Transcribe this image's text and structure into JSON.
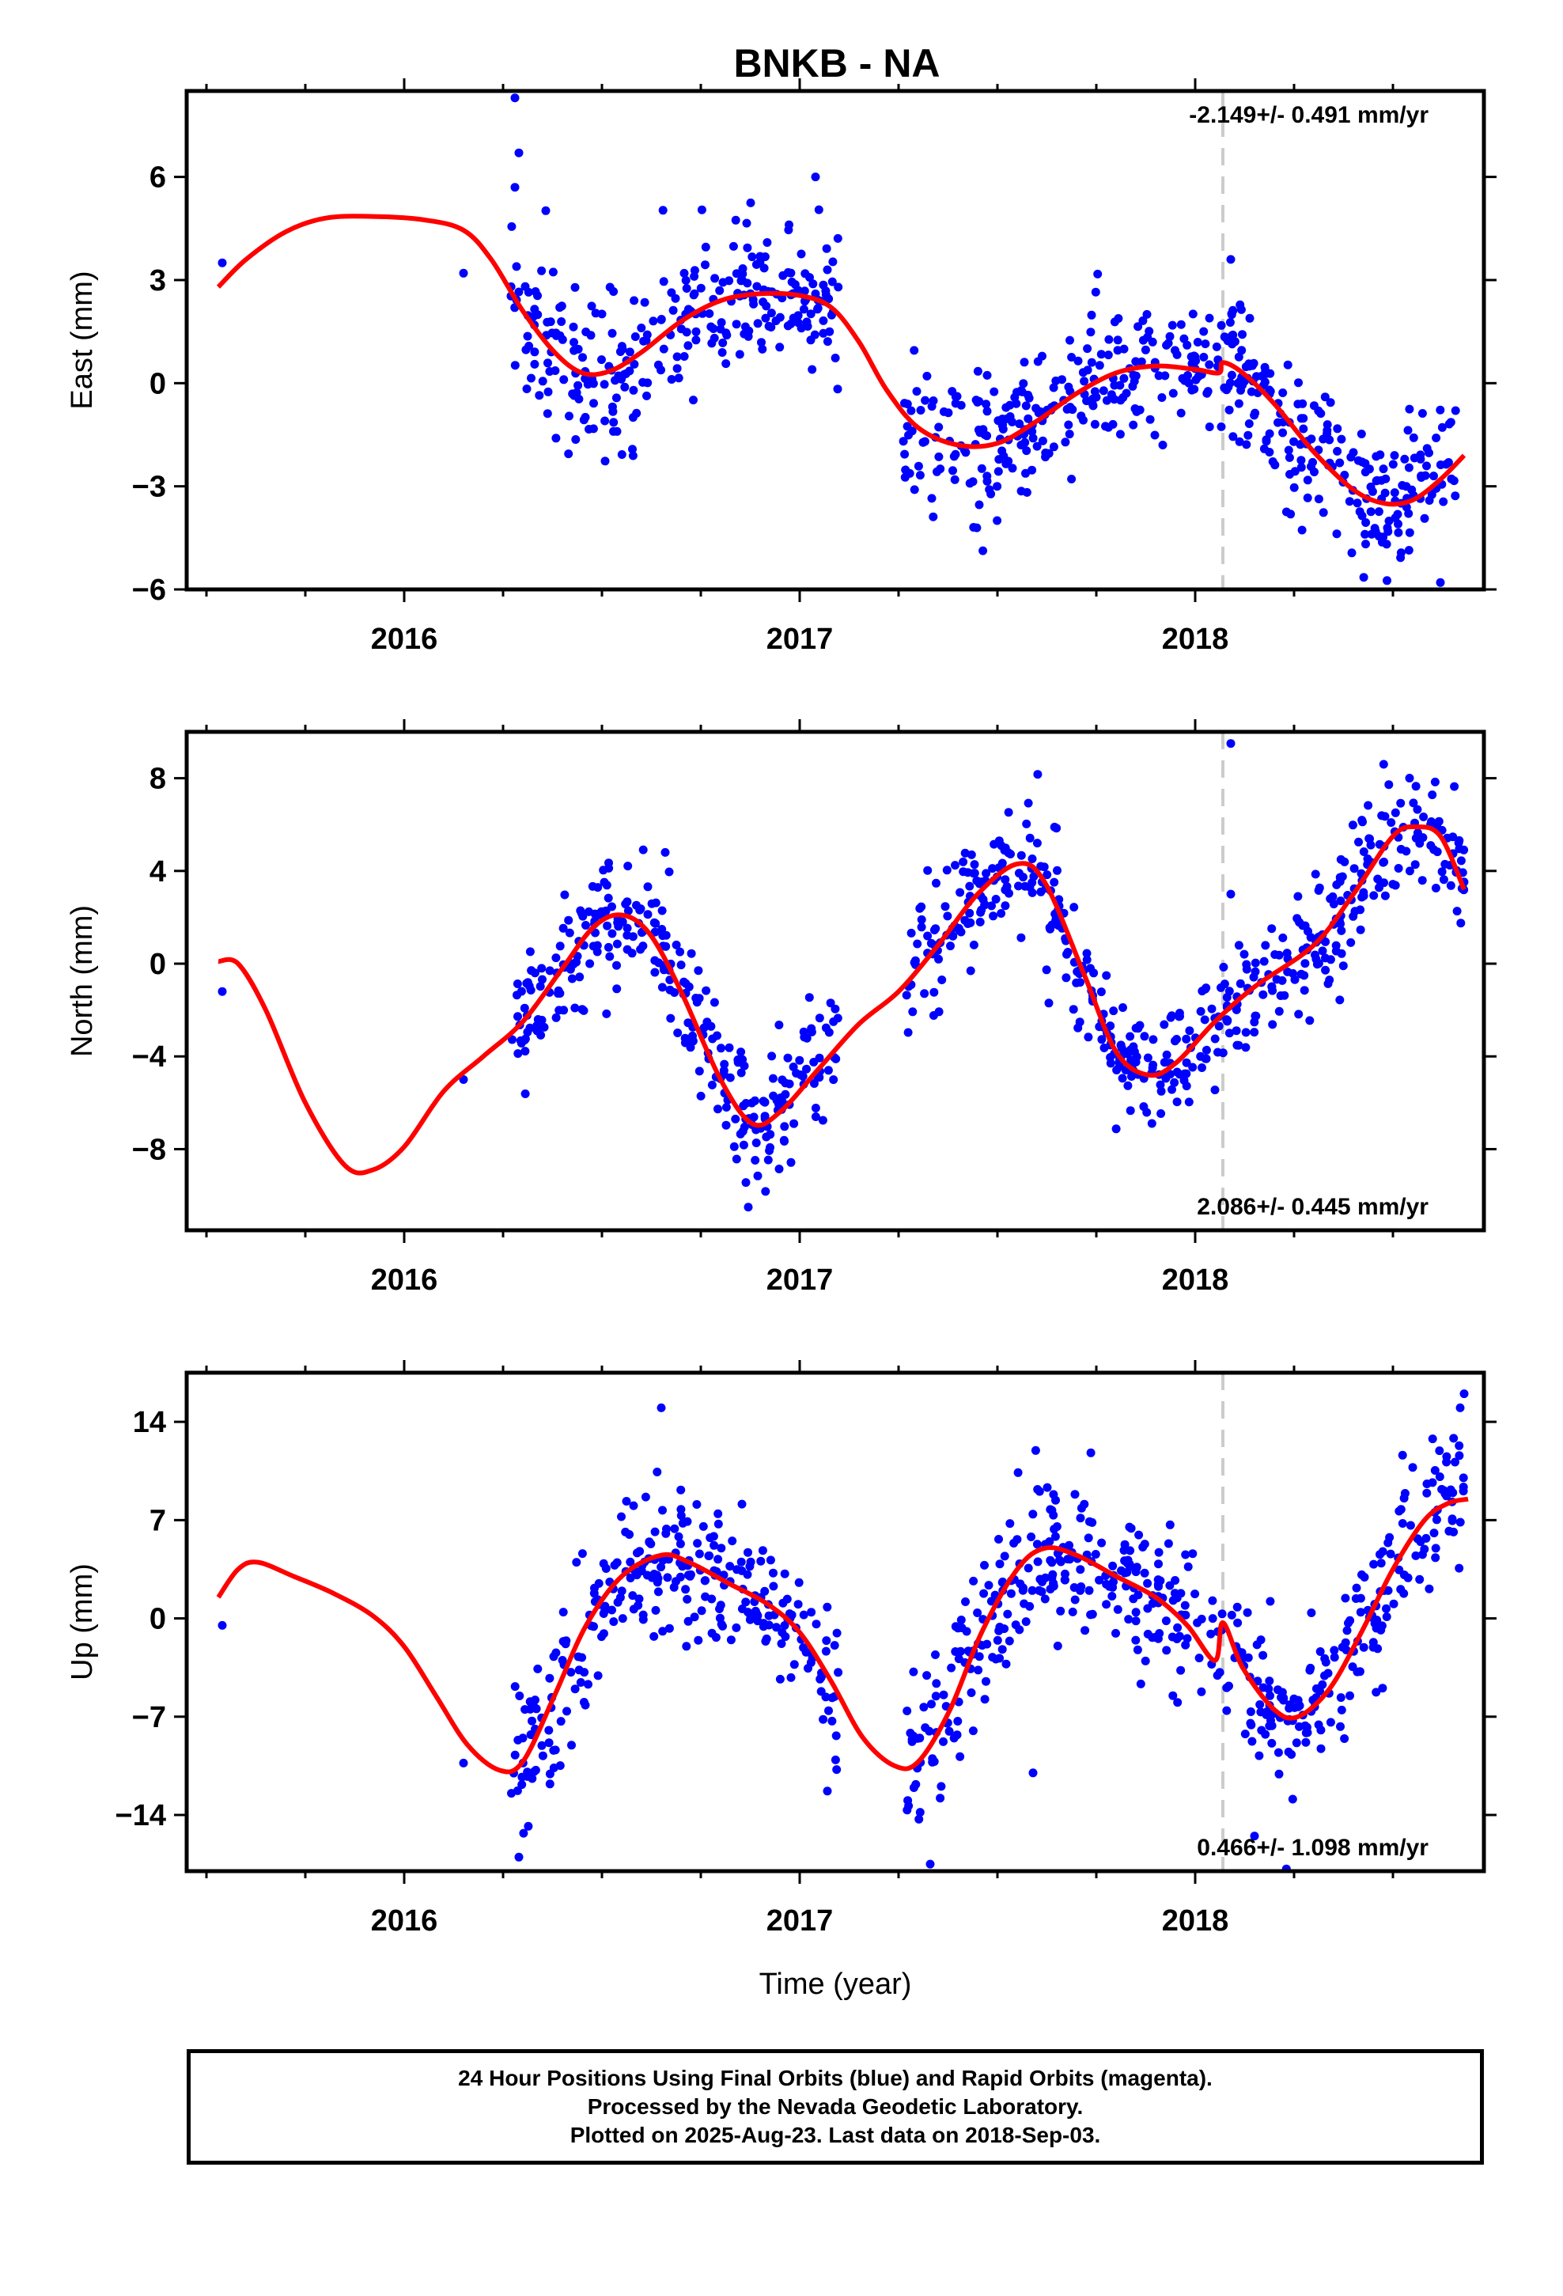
{
  "title": "BNKB - NA",
  "caption": {
    "line1": "24 Hour Positions Using Final Orbits (blue) and Rapid Orbits (magenta).",
    "line2": "Processed by the Nevada Geodetic Laboratory.",
    "line3": "Plotted on 2025-Aug-23. Last data on 2018-Sep-03."
  },
  "colors": {
    "points": "#0000ff",
    "model": "#ff0000",
    "break_line": "#cccccc",
    "axes": "#000000"
  },
  "chart_data": [
    {
      "type": "scatter",
      "ylabel": "East (mm)",
      "xlabel": "",
      "xlim": [
        2015.45,
        2018.73
      ],
      "ylim": [
        -6,
        8.5
      ],
      "xticks": [
        2016,
        2017,
        2018
      ],
      "yticks": [
        -6,
        -3,
        0,
        3,
        6
      ],
      "grid": false,
      "break_x": 2018.07,
      "rate_text": "-2.149+/- 0.491 mm/yr",
      "rate_position": "top-right",
      "model_curve": [
        [
          2015.53,
          2.8
        ],
        [
          2015.6,
          3.6
        ],
        [
          2015.7,
          4.4
        ],
        [
          2015.8,
          4.8
        ],
        [
          2015.92,
          4.85
        ],
        [
          2016.05,
          4.75
        ],
        [
          2016.15,
          4.45
        ],
        [
          2016.22,
          3.6
        ],
        [
          2016.3,
          2.1
        ],
        [
          2016.38,
          0.9
        ],
        [
          2016.45,
          0.3
        ],
        [
          2016.52,
          0.35
        ],
        [
          2016.6,
          0.9
        ],
        [
          2016.7,
          1.8
        ],
        [
          2016.8,
          2.4
        ],
        [
          2016.9,
          2.6
        ],
        [
          2017.0,
          2.55
        ],
        [
          2017.08,
          2.2
        ],
        [
          2017.15,
          1.2
        ],
        [
          2017.22,
          -0.2
        ],
        [
          2017.3,
          -1.3
        ],
        [
          2017.4,
          -1.8
        ],
        [
          2017.5,
          -1.75
        ],
        [
          2017.6,
          -1.1
        ],
        [
          2017.7,
          -0.3
        ],
        [
          2017.8,
          0.3
        ],
        [
          2017.9,
          0.5
        ],
        [
          2018.0,
          0.4
        ],
        [
          2018.06,
          0.3
        ],
        [
          2018.07,
          0.6
        ],
        [
          2018.12,
          0.3
        ],
        [
          2018.2,
          -0.6
        ],
        [
          2018.3,
          -2.0
        ],
        [
          2018.4,
          -3.1
        ],
        [
          2018.48,
          -3.5
        ],
        [
          2018.55,
          -3.4
        ],
        [
          2018.62,
          -2.8
        ],
        [
          2018.68,
          -2.1
        ]
      ],
      "points_summary": {
        "segments": [
          [
            2016.27,
            2016.45,
            1.2,
            1.3
          ],
          [
            2016.45,
            2017.1,
            2.0,
            1.1
          ],
          [
            2017.26,
            2017.62,
            -1.8,
            1.0
          ],
          [
            2017.62,
            2018.2,
            0.2,
            1.0
          ],
          [
            2018.2,
            2018.66,
            -2.6,
            1.1
          ]
        ],
        "outliers": [
          [
            2015.54,
            3.5
          ],
          [
            2016.15,
            3.2
          ],
          [
            2016.28,
            8.3
          ],
          [
            2016.29,
            6.7
          ],
          [
            2016.28,
            5.7
          ],
          [
            2017.04,
            6.0
          ],
          [
            2018.09,
            3.6
          ],
          [
            2018.62,
            -5.8
          ]
        ]
      }
    },
    {
      "type": "scatter",
      "ylabel": "North (mm)",
      "xlabel": "",
      "xlim": [
        2015.45,
        2018.73
      ],
      "ylim": [
        -11.5,
        10
      ],
      "xticks": [
        2016,
        2017,
        2018
      ],
      "yticks": [
        -8,
        -4,
        0,
        4,
        8
      ],
      "grid": false,
      "break_x": 2018.07,
      "rate_text": "2.086+/- 0.445 mm/yr",
      "rate_position": "bottom-right",
      "model_curve": [
        [
          2015.53,
          0.1
        ],
        [
          2015.58,
          0.0
        ],
        [
          2015.65,
          -2.0
        ],
        [
          2015.75,
          -6.0
        ],
        [
          2015.85,
          -8.7
        ],
        [
          2015.92,
          -8.9
        ],
        [
          2016.0,
          -7.9
        ],
        [
          2016.1,
          -5.5
        ],
        [
          2016.2,
          -4.0
        ],
        [
          2016.3,
          -2.5
        ],
        [
          2016.4,
          -0.2
        ],
        [
          2016.48,
          1.6
        ],
        [
          2016.55,
          2.1
        ],
        [
          2016.62,
          1.3
        ],
        [
          2016.7,
          -1.2
        ],
        [
          2016.8,
          -5.0
        ],
        [
          2016.88,
          -6.9
        ],
        [
          2016.95,
          -6.4
        ],
        [
          2017.05,
          -4.5
        ],
        [
          2017.15,
          -2.6
        ],
        [
          2017.25,
          -1.2
        ],
        [
          2017.35,
          0.8
        ],
        [
          2017.45,
          3.0
        ],
        [
          2017.55,
          4.3
        ],
        [
          2017.62,
          3.5
        ],
        [
          2017.72,
          -0.5
        ],
        [
          2017.8,
          -3.8
        ],
        [
          2017.88,
          -4.8
        ],
        [
          2017.95,
          -4.3
        ],
        [
          2018.05,
          -2.5
        ],
        [
          2018.15,
          -1.0
        ],
        [
          2018.3,
          0.8
        ],
        [
          2018.4,
          3.0
        ],
        [
          2018.5,
          5.5
        ],
        [
          2018.56,
          5.9
        ],
        [
          2018.62,
          5.5
        ],
        [
          2018.68,
          3.2
        ]
      ],
      "points_summary": {
        "segments": [
          [
            2016.27,
            2016.7,
            0.0,
            1.3
          ],
          [
            2016.7,
            2017.1,
            -5.5,
            1.3
          ],
          [
            2017.26,
            2017.7,
            2.0,
            1.3
          ],
          [
            2017.7,
            2018.05,
            -3.8,
            1.2
          ],
          [
            2018.05,
            2018.68,
            2.2,
            1.3
          ]
        ],
        "outliers": [
          [
            2015.54,
            -1.2
          ],
          [
            2016.15,
            -5.0
          ],
          [
            2016.66,
            4.8
          ],
          [
            2016.87,
            -10.5
          ],
          [
            2017.63,
            -1.7
          ],
          [
            2018.09,
            9.5
          ],
          [
            2018.09,
            3.0
          ]
        ]
      }
    },
    {
      "type": "scatter",
      "ylabel": "Up (mm)",
      "xlabel": "Time (year)",
      "xlim": [
        2015.45,
        2018.73
      ],
      "ylim": [
        -18,
        17.5
      ],
      "xticks": [
        2016,
        2017,
        2018
      ],
      "yticks": [
        -14,
        -7,
        0,
        7,
        14
      ],
      "grid": false,
      "break_x": 2018.07,
      "rate_text": "0.466+/- 1.098 mm/yr",
      "rate_position": "bottom-right",
      "model_curve": [
        [
          2015.53,
          1.5
        ],
        [
          2015.58,
          3.5
        ],
        [
          2015.63,
          4.0
        ],
        [
          2015.72,
          3.0
        ],
        [
          2015.82,
          1.8
        ],
        [
          2015.92,
          0.2
        ],
        [
          2016.0,
          -2.0
        ],
        [
          2016.08,
          -5.5
        ],
        [
          2016.16,
          -9.0
        ],
        [
          2016.24,
          -10.8
        ],
        [
          2016.3,
          -10.2
        ],
        [
          2016.38,
          -5.5
        ],
        [
          2016.46,
          -0.5
        ],
        [
          2016.55,
          3.0
        ],
        [
          2016.65,
          4.5
        ],
        [
          2016.72,
          4.0
        ],
        [
          2016.82,
          2.5
        ],
        [
          2016.92,
          1.0
        ],
        [
          2017.0,
          -1.0
        ],
        [
          2017.08,
          -4.5
        ],
        [
          2017.16,
          -8.5
        ],
        [
          2017.24,
          -10.5
        ],
        [
          2017.3,
          -10.2
        ],
        [
          2017.38,
          -6.5
        ],
        [
          2017.46,
          -1.0
        ],
        [
          2017.55,
          3.5
        ],
        [
          2017.62,
          5.0
        ],
        [
          2017.7,
          4.5
        ],
        [
          2017.8,
          3.0
        ],
        [
          2017.9,
          1.5
        ],
        [
          2017.98,
          -0.5
        ],
        [
          2018.05,
          -3.0
        ],
        [
          2018.07,
          -0.3
        ],
        [
          2018.12,
          -3.5
        ],
        [
          2018.2,
          -6.5
        ],
        [
          2018.26,
          -7.0
        ],
        [
          2018.34,
          -5.0
        ],
        [
          2018.42,
          -1.0
        ],
        [
          2018.5,
          3.5
        ],
        [
          2018.58,
          7.0
        ],
        [
          2018.64,
          8.2
        ],
        [
          2018.69,
          8.5
        ]
      ],
      "points_summary": {
        "segments": [
          [
            2016.27,
            2016.45,
            -5.0,
            2.8
          ],
          [
            2016.45,
            2017.1,
            2.5,
            2.6
          ],
          [
            2017.27,
            2017.45,
            -6.0,
            2.8
          ],
          [
            2017.45,
            2018.1,
            3.0,
            2.8
          ],
          [
            2018.1,
            2018.4,
            -6.0,
            2.5
          ],
          [
            2018.4,
            2018.68,
            4.0,
            3.0
          ]
        ],
        "outliers": [
          [
            2015.54,
            -0.5
          ],
          [
            2016.15,
            -10.3
          ],
          [
            2016.29,
            -17.0
          ],
          [
            2016.65,
            15.0
          ],
          [
            2017.07,
            -12.3
          ],
          [
            2017.33,
            -17.5
          ],
          [
            2017.59,
            -11.0
          ],
          [
            2018.15,
            -15.5
          ],
          [
            2018.68,
            16.0
          ],
          [
            2018.67,
            15.0
          ]
        ]
      }
    }
  ]
}
